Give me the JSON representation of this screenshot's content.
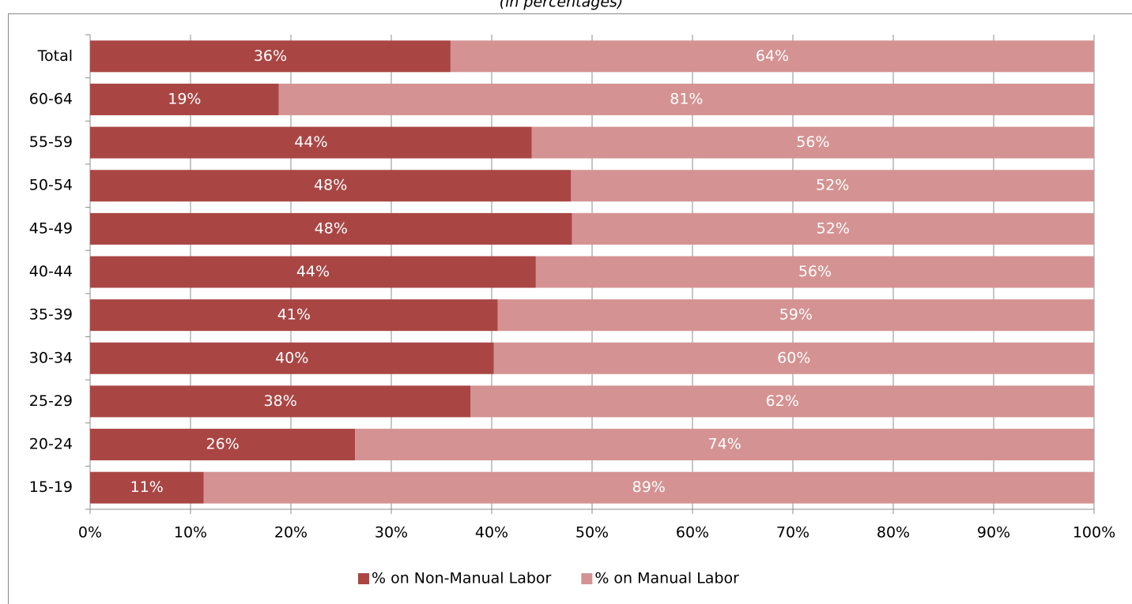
{
  "chart_data": {
    "type": "stacked-bar-horizontal",
    "subtitle": "(in percentages)",
    "categories": [
      "Total",
      "60-64",
      "55-59",
      "50-54",
      "45-49",
      "40-44",
      "35-39",
      "30-34",
      "25-29",
      "20-24",
      "15-19"
    ],
    "series": [
      {
        "name": "% on Non-Manual Labor",
        "color": "#a94644",
        "values": [
          35.9,
          18.8,
          44.0,
          47.9,
          48.0,
          44.4,
          40.6,
          40.2,
          37.9,
          26.4,
          11.3
        ],
        "value_labels": [
          "36%",
          "19%",
          "44%",
          "48%",
          "48%",
          "44%",
          "41%",
          "40%",
          "38%",
          "26%",
          "11%"
        ]
      },
      {
        "name": "% on Manual Labor",
        "color": "#d49392",
        "values": [
          64.1,
          81.2,
          56.0,
          52.1,
          52.0,
          55.6,
          59.4,
          59.8,
          62.1,
          73.6,
          88.7
        ],
        "value_labels": [
          "64%",
          "81%",
          "56%",
          "52%",
          "52%",
          "56%",
          "59%",
          "60%",
          "62%",
          "74%",
          "89%"
        ]
      }
    ],
    "xlim": [
      0,
      100
    ],
    "xticks": [
      {
        "value": 0,
        "label": "0%"
      },
      {
        "value": 10,
        "label": "10%"
      },
      {
        "value": 20,
        "label": "20%"
      },
      {
        "value": 30,
        "label": "30%"
      },
      {
        "value": 40,
        "label": "40%"
      },
      {
        "value": 50,
        "label": "50%"
      },
      {
        "value": 60,
        "label": "60%"
      },
      {
        "value": 70,
        "label": "70%"
      },
      {
        "value": 80,
        "label": "80%"
      },
      {
        "value": 90,
        "label": "90%"
      },
      {
        "value": 100,
        "label": "100%"
      }
    ],
    "grid": true,
    "legend": "bottom"
  }
}
